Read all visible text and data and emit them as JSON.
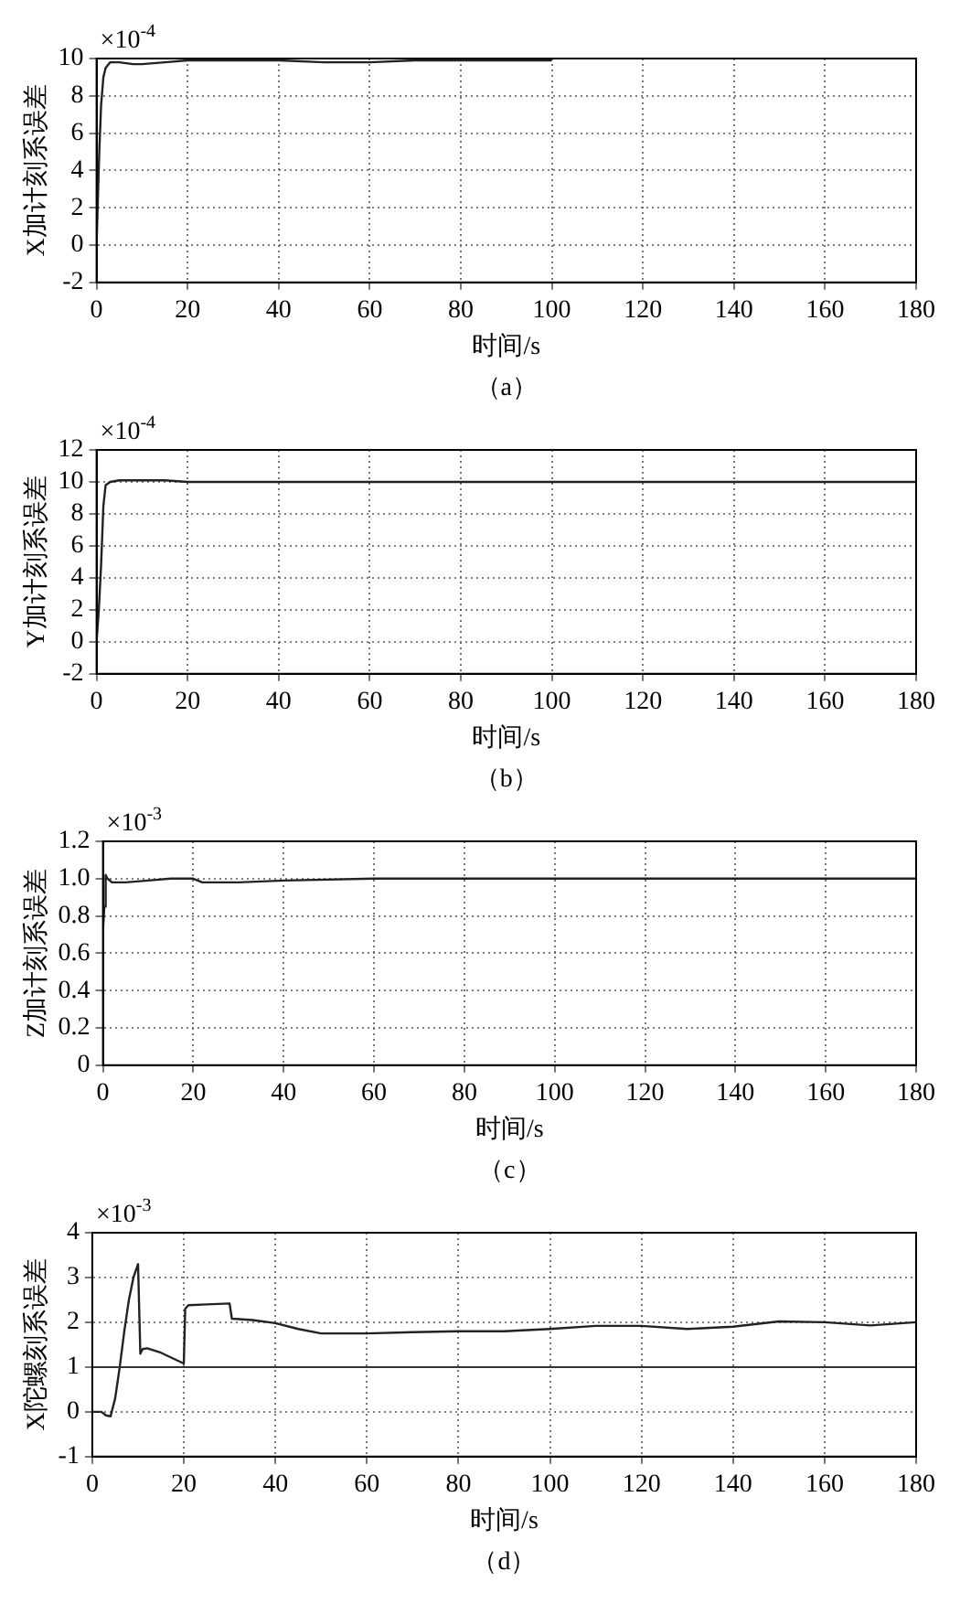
{
  "chart_data": [
    {
      "type": "line",
      "xlabel": "时间/s",
      "ylabel": "X加计刻系误差",
      "annotations": [
        "×10$^{-4}$",
        "（a）"
      ],
      "xlim": [
        0,
        180
      ],
      "xticks": [
        0,
        20,
        40,
        60,
        80,
        100,
        120,
        140,
        160,
        180
      ],
      "ylim": [
        -2,
        10
      ],
      "yticks": [
        -2,
        0,
        2,
        4,
        6,
        8,
        10
      ],
      "grid": true,
      "legend": false,
      "marker": "none",
      "line_style": "solid",
      "series": [
        {
          "color": "#222222",
          "x": [
            0,
            0.3,
            0.6,
            1,
            1.5,
            2,
            3,
            5,
            8,
            10,
            15,
            20,
            30,
            40,
            50,
            60,
            70,
            80,
            90,
            100
          ],
          "values": [
            0,
            2.5,
            5,
            7.5,
            9,
            9.5,
            9.8,
            9.8,
            9.7,
            9.7,
            9.8,
            9.9,
            9.9,
            9.9,
            9.8,
            9.8,
            9.9,
            9.9,
            9.9,
            9.9
          ]
        }
      ]
    },
    {
      "type": "line",
      "xlabel": "时间/s",
      "ylabel": "Y加计刻系误差",
      "annotations": [
        "×10$^{-4}$",
        "（b）"
      ],
      "xlim": [
        0,
        180
      ],
      "xticks": [
        0,
        20,
        40,
        60,
        80,
        100,
        120,
        140,
        160,
        180
      ],
      "ylim": [
        -2,
        12
      ],
      "yticks": [
        -2,
        0,
        2,
        4,
        6,
        8,
        10,
        12
      ],
      "grid": true,
      "legend": false,
      "marker": "none",
      "line_style": "solid",
      "series": [
        {
          "color": "#222222",
          "x": [
            0,
            0.5,
            1,
            1.5,
            2,
            3,
            5,
            10,
            15,
            20,
            50,
            100,
            180
          ],
          "values": [
            0,
            2,
            4.8,
            8.5,
            9.8,
            10,
            10.1,
            10.1,
            10.1,
            10,
            10,
            10,
            10
          ]
        }
      ]
    },
    {
      "type": "line",
      "xlabel": "时间/s",
      "ylabel": "Z加计刻系误差",
      "annotations": [
        "×10$^{-3}$",
        "（c）"
      ],
      "xlim": [
        0,
        180
      ],
      "xticks": [
        0,
        20,
        40,
        60,
        80,
        100,
        120,
        140,
        160,
        180
      ],
      "ylim": [
        0,
        1.2
      ],
      "yticks": [
        0,
        {
          "value": 0.2,
          "label": "0.2"
        },
        {
          "value": 0.4,
          "label": "0.4"
        },
        {
          "value": 0.6,
          "label": "0.6"
        },
        {
          "value": 0.8,
          "label": "0.8"
        },
        {
          "value": 1,
          "label": "1.0"
        },
        {
          "value": 1.2,
          "label": "1.2"
        }
      ],
      "grid": true,
      "legend": false,
      "marker": "none",
      "line_style": "solid",
      "series": [
        {
          "color": "#222222",
          "x": [
            0,
            0.3,
            0.6,
            1,
            2,
            5,
            10,
            15,
            20,
            22,
            30,
            40,
            60,
            180
          ],
          "values": [
            0.72,
            0.85,
            1.02,
            1.0,
            0.98,
            0.98,
            0.99,
            1.0,
            1.0,
            0.98,
            0.98,
            0.99,
            1.0,
            1.0
          ]
        }
      ]
    },
    {
      "type": "line",
      "xlabel": "时间/s",
      "ylabel": "X陀螺刻系误差",
      "annotations": [
        "×10$^{-3}$",
        "（d）"
      ],
      "xlim": [
        0,
        180
      ],
      "xticks": [
        0,
        20,
        40,
        60,
        80,
        100,
        120,
        140,
        160,
        180
      ],
      "ylim": [
        -1,
        4
      ],
      "yticks": [
        -1,
        0,
        1,
        2,
        3,
        4
      ],
      "grid": true,
      "legend": false,
      "marker": "none",
      "line_style": "solid",
      "ref_lines": [
        {
          "axis": "y",
          "value": 1,
          "color": "#333333"
        }
      ],
      "series": [
        {
          "color": "#222222",
          "x": [
            0,
            2,
            3,
            4,
            5,
            6,
            7,
            8,
            9,
            10,
            10.5,
            11,
            12,
            15,
            20,
            20.3,
            21,
            25,
            30,
            30.5,
            35,
            40,
            45,
            50,
            60,
            70,
            80,
            90,
            100,
            110,
            120,
            130,
            140,
            150,
            160,
            170,
            180
          ],
          "values": [
            0,
            0,
            -0.08,
            -0.1,
            0.3,
            1.0,
            1.8,
            2.5,
            3.0,
            3.3,
            1.3,
            1.4,
            1.42,
            1.32,
            1.08,
            2.3,
            2.38,
            2.4,
            2.42,
            2.08,
            2.05,
            1.98,
            1.85,
            1.75,
            1.75,
            1.78,
            1.8,
            1.8,
            1.85,
            1.92,
            1.92,
            1.85,
            1.9,
            2.02,
            2.0,
            1.93,
            2.0
          ]
        }
      ]
    }
  ]
}
